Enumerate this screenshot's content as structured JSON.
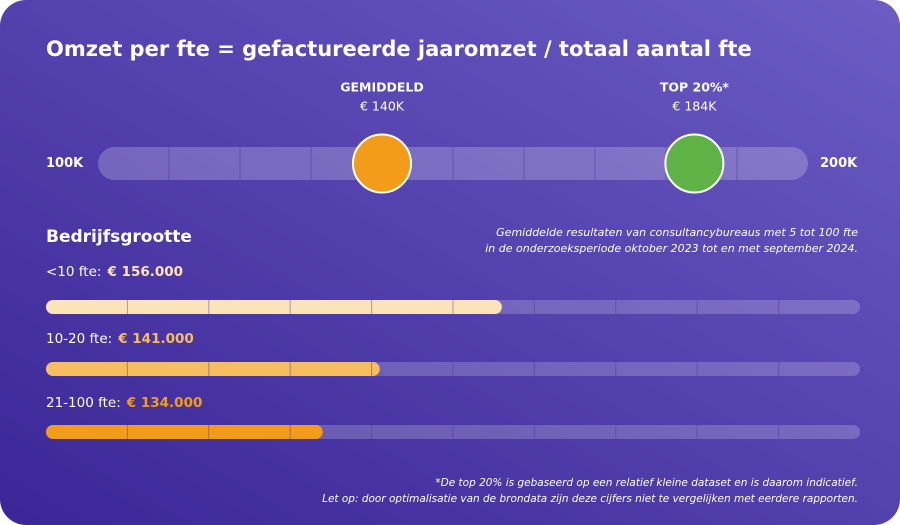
{
  "chart_data": [
    {
      "type": "dot-scale",
      "title": "Omzet per fte = gefactureerde jaaromzet / totaal aantal fte",
      "xlim": [
        100,
        200
      ],
      "xticks": [
        {
          "value": 100,
          "label": "100K"
        },
        {
          "value": 200,
          "label": "200K"
        }
      ],
      "series": [
        {
          "name": "GEMIDDELD",
          "color": "#f39c1a",
          "values": [
            140
          ],
          "value_labels": [
            "€ 140K"
          ]
        },
        {
          "name": "TOP 20%*",
          "color": "#5fb246",
          "values": [
            184
          ],
          "value_labels": [
            "€ 184K"
          ]
        }
      ]
    },
    {
      "type": "bar",
      "orientation": "horizontal",
      "title": "Bedrijfsgrootte",
      "subtitle": [
        "Gemiddelde resultaten van consultancybureaus met 5 tot 100 fte",
        "in de onderzoeksperiode oktober 2023 tot en met september 2024."
      ],
      "categories": [
        "<10 fte:",
        "10-20 fte:",
        "21-100 fte:"
      ],
      "values": [
        156000,
        141000,
        134000
      ],
      "value_labels": [
        "€ 156.000",
        "€ 141.000",
        "€ 134.000"
      ],
      "colors": [
        "#fde3b8",
        "#f7bd5e",
        "#f39c1a"
      ],
      "xlim": [
        100000,
        200000
      ]
    }
  ],
  "footnotes": [
    "*De top 20% is gebaseerd op een relatief kleine dataset en is daarom indicatief.",
    "Let op: door optimalisatie van de brondata zijn deze cijfers niet te vergelijken met eerdere rapporten."
  ]
}
